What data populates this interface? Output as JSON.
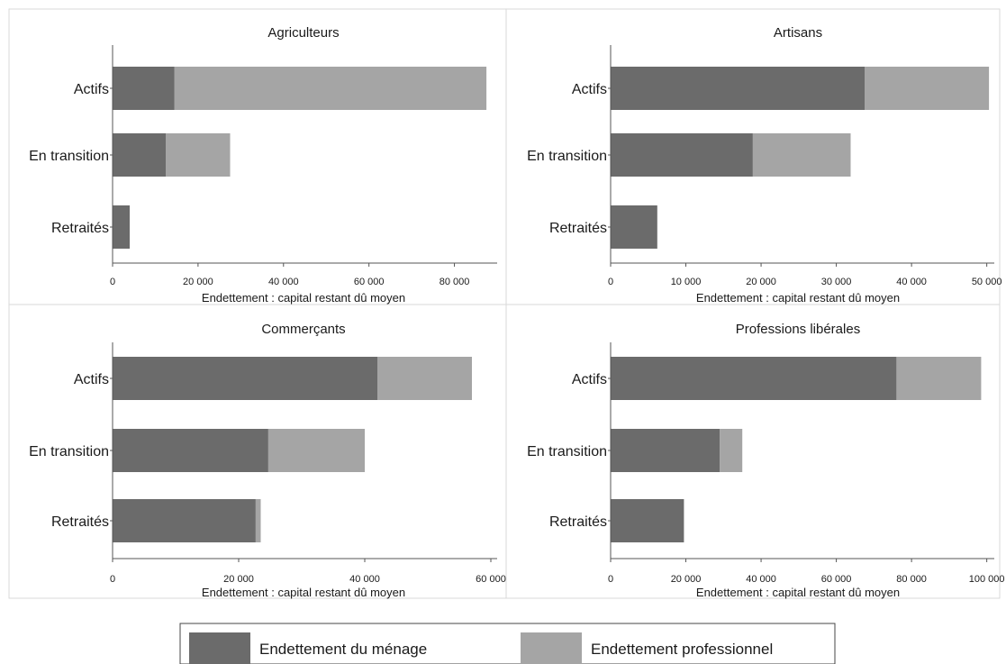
{
  "legend": {
    "items": [
      {
        "label": "Endettement du ménage",
        "color": "#6b6b6b"
      },
      {
        "label": "Endettement professionnel",
        "color": "#a5a5a5"
      }
    ],
    "position": "bottom-center"
  },
  "colors": {
    "menage": "#6b6b6b",
    "professionnel": "#a5a5a5",
    "axis": "#555555",
    "border": "#d9d9d9"
  },
  "chart_data": [
    {
      "type": "bar",
      "orientation": "horizontal",
      "stacked": true,
      "title": "Agriculteurs",
      "xlabel": "Endettement : capital restant dû moyen",
      "categories": [
        "Actifs",
        "En transition",
        "Retraités"
      ],
      "series": [
        {
          "name": "Endettement du ménage",
          "values": [
            14500,
            12500,
            4000
          ]
        },
        {
          "name": "Endettement professionnel",
          "values": [
            73000,
            15000,
            0
          ]
        }
      ],
      "xlim": [
        0,
        90000
      ],
      "xticks": [
        0,
        20000,
        40000,
        60000,
        80000
      ],
      "xtick_labels": [
        "0",
        "20 000",
        "40 000",
        "60 000",
        "80 000"
      ],
      "grid": false
    },
    {
      "type": "bar",
      "orientation": "horizontal",
      "stacked": true,
      "title": "Artisans",
      "xlabel": "Endettement : capital restant dû moyen",
      "categories": [
        "Actifs",
        "En transition",
        "Retraités"
      ],
      "series": [
        {
          "name": "Endettement du ménage",
          "values": [
            33800,
            18900,
            6200
          ]
        },
        {
          "name": "Endettement professionnel",
          "values": [
            16500,
            13000,
            0
          ]
        }
      ],
      "xlim": [
        0,
        51000
      ],
      "xticks": [
        0,
        10000,
        20000,
        30000,
        40000,
        50000
      ],
      "xtick_labels": [
        "0",
        "10 000",
        "20 000",
        "30 000",
        "40 000",
        "50 000"
      ],
      "grid": false
    },
    {
      "type": "bar",
      "orientation": "horizontal",
      "stacked": true,
      "title": "Commerçants",
      "xlabel": "Endettement : capital restant dû moyen",
      "categories": [
        "Actifs",
        "En transition",
        "Retraités"
      ],
      "series": [
        {
          "name": "Endettement du ménage",
          "values": [
            42000,
            24700,
            22700
          ]
        },
        {
          "name": "Endettement professionnel",
          "values": [
            15000,
            15300,
            800
          ]
        }
      ],
      "xlim": [
        0,
        61000
      ],
      "xticks": [
        0,
        20000,
        40000,
        60000
      ],
      "xtick_labels": [
        "0",
        "20 000",
        "40 000",
        "60 000"
      ],
      "grid": false
    },
    {
      "type": "bar",
      "orientation": "horizontal",
      "stacked": true,
      "title": "Professions libérales",
      "xlabel": "Endettement : capital restant dû moyen",
      "categories": [
        "Actifs",
        "En transition",
        "Retraités"
      ],
      "series": [
        {
          "name": "Endettement du ménage",
          "values": [
            76000,
            29000,
            19500
          ]
        },
        {
          "name": "Endettement professionnel",
          "values": [
            22500,
            6000,
            0
          ]
        }
      ],
      "xlim": [
        0,
        102000
      ],
      "xticks": [
        0,
        20000,
        40000,
        60000,
        80000,
        100000
      ],
      "xtick_labels": [
        "0",
        "20 000",
        "40 000",
        "60 000",
        "80 000",
        "100 000"
      ],
      "grid": false
    }
  ]
}
